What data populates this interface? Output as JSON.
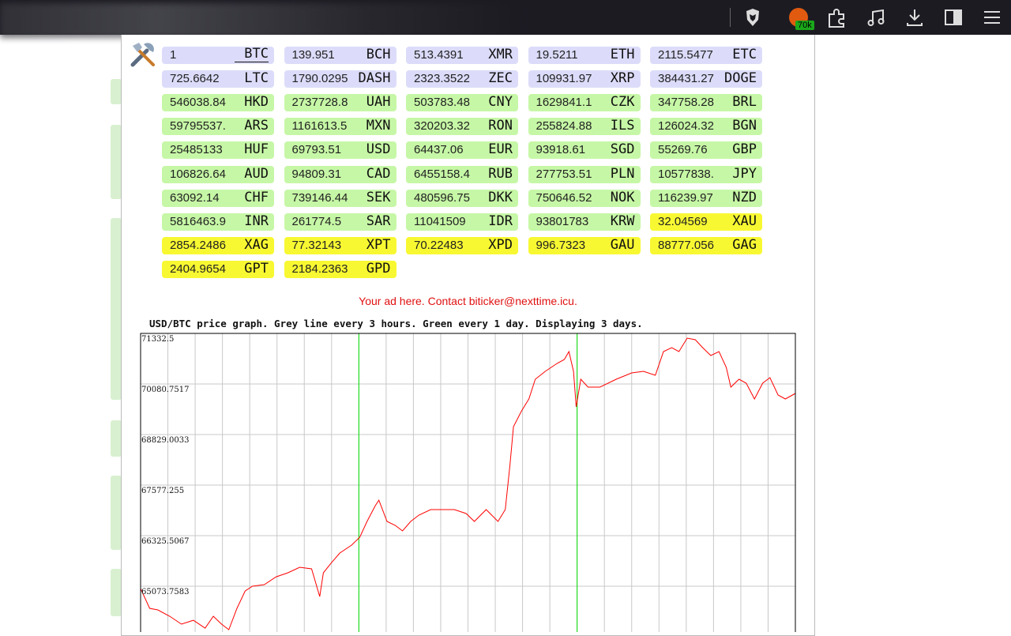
{
  "toolbar": {
    "badge": "70k"
  },
  "tickers": [
    {
      "value": "1",
      "code": "BTC",
      "color": "#dcdcfa"
    },
    {
      "value": "139.951",
      "code": "BCH",
      "color": "#dcdcfa"
    },
    {
      "value": "513.4391",
      "code": "XMR",
      "color": "#dcdcfa"
    },
    {
      "value": "19.5211",
      "code": "ETH",
      "color": "#dcdcfa"
    },
    {
      "value": "2115.5477",
      "code": "ETC",
      "color": "#dcdcfa"
    },
    {
      "value": "725.6642",
      "code": "LTC",
      "color": "#dcdcfa"
    },
    {
      "value": "1790.0295",
      "code": "DASH",
      "color": "#dcdcfa"
    },
    {
      "value": "2323.3522",
      "code": "ZEC",
      "color": "#dcdcfa"
    },
    {
      "value": "109931.97",
      "code": "XRP",
      "color": "#dcdcfa"
    },
    {
      "value": "384431.27",
      "code": "DOGE",
      "color": "#dcdcfa"
    },
    {
      "value": "546038.84",
      "code": "HKD",
      "color": "#c6f7a6"
    },
    {
      "value": "2737728.8",
      "code": "UAH",
      "color": "#c6f7a6"
    },
    {
      "value": "503783.48",
      "code": "CNY",
      "color": "#c6f7a6"
    },
    {
      "value": "1629841.1",
      "code": "CZK",
      "color": "#c6f7a6"
    },
    {
      "value": "347758.28",
      "code": "BRL",
      "color": "#c6f7a6"
    },
    {
      "value": "59795537.",
      "code": "ARS",
      "color": "#c6f7a6"
    },
    {
      "value": "1161613.5",
      "code": "MXN",
      "color": "#c6f7a6"
    },
    {
      "value": "320203.32",
      "code": "RON",
      "color": "#c6f7a6"
    },
    {
      "value": "255824.88",
      "code": "ILS",
      "color": "#c6f7a6"
    },
    {
      "value": "126024.32",
      "code": "BGN",
      "color": "#c6f7a6"
    },
    {
      "value": "25485133",
      "code": "HUF",
      "color": "#c6f7a6"
    },
    {
      "value": "69793.51",
      "code": "USD",
      "color": "#c6f7a6"
    },
    {
      "value": "64437.06",
      "code": "EUR",
      "color": "#c6f7a6"
    },
    {
      "value": "93918.61",
      "code": "SGD",
      "color": "#c6f7a6"
    },
    {
      "value": "55269.76",
      "code": "GBP",
      "color": "#c6f7a6"
    },
    {
      "value": "106826.64",
      "code": "AUD",
      "color": "#c6f7a6"
    },
    {
      "value": "94809.31",
      "code": "CAD",
      "color": "#c6f7a6"
    },
    {
      "value": "6455158.4",
      "code": "RUB",
      "color": "#c6f7a6"
    },
    {
      "value": "277753.51",
      "code": "PLN",
      "color": "#c6f7a6"
    },
    {
      "value": "10577838.",
      "code": "JPY",
      "color": "#c6f7a6"
    },
    {
      "value": "63092.14",
      "code": "CHF",
      "color": "#c6f7a6"
    },
    {
      "value": "739146.44",
      "code": "SEK",
      "color": "#c6f7a6"
    },
    {
      "value": "480596.75",
      "code": "DKK",
      "color": "#c6f7a6"
    },
    {
      "value": "750646.52",
      "code": "NOK",
      "color": "#c6f7a6"
    },
    {
      "value": "116239.97",
      "code": "NZD",
      "color": "#c6f7a6"
    },
    {
      "value": "5816463.9",
      "code": "INR",
      "color": "#c6f7a6"
    },
    {
      "value": "261774.5",
      "code": "SAR",
      "color": "#c6f7a6"
    },
    {
      "value": "11041509",
      "code": "IDR",
      "color": "#c6f7a6"
    },
    {
      "value": "93801783",
      "code": "KRW",
      "color": "#c6f7a6"
    },
    {
      "value": "32.04569",
      "code": "XAU",
      "color": "#f8f832"
    },
    {
      "value": "2854.2486",
      "code": "XAG",
      "color": "#f8f832"
    },
    {
      "value": "77.32143",
      "code": "XPT",
      "color": "#f8f832"
    },
    {
      "value": "70.22483",
      "code": "XPD",
      "color": "#f8f832"
    },
    {
      "value": "996.7323",
      "code": "GAU",
      "color": "#f8f832"
    },
    {
      "value": "88777.056",
      "code": "GAG",
      "color": "#f8f832"
    },
    {
      "value": "2404.9654",
      "code": "GPT",
      "color": "#f8f832"
    },
    {
      "value": "2184.2363",
      "code": "GPD",
      "color": "#f8f832"
    }
  ],
  "ad": "Your ad here. Contact biticker@nexttime.icu.",
  "graph_title": "USD/BTC price graph. Grey line every 3 hours. Green every 1 day. Displaying 3 days.",
  "chart_data": {
    "type": "line",
    "color": "#ff0000",
    "xlim": [
      0,
      72
    ],
    "xticks": [
      0,
      3,
      6,
      9,
      12,
      15,
      18,
      21,
      24,
      27,
      30,
      33,
      36,
      39,
      42,
      45,
      48,
      51,
      54,
      57,
      60,
      63,
      66,
      69,
      72
    ],
    "day_lines": [
      24,
      48
    ],
    "day_line_color": "#00e000",
    "ylim": [
      63940,
      71332.5
    ],
    "yticks": [
      71332.5,
      70080.7517,
      68829.0033,
      67577.255,
      66325.5067,
      65073.7583
    ],
    "x": [
      0.0,
      1.0,
      1.9,
      3.2,
      4.5,
      5.8,
      7.1,
      8.0,
      8.9,
      9.7,
      10.6,
      11.5,
      12.3,
      13.6,
      14.9,
      16.2,
      17.5,
      18.8,
      19.7,
      20.1,
      21.0,
      21.9,
      23.2,
      24.1,
      24.9,
      25.8,
      26.2,
      27.1,
      28.0,
      28.8,
      29.7,
      30.6,
      31.9,
      33.2,
      34.5,
      35.8,
      36.7,
      38.0,
      39.3,
      40.1,
      40.6,
      41.0,
      41.9,
      42.7,
      43.4,
      44.5,
      45.8,
      46.6,
      47.1,
      47.6,
      47.9,
      48.4,
      49.2,
      50.5,
      52.3,
      54.0,
      55.3,
      56.6,
      57.5,
      58.4,
      59.2,
      60.1,
      61.0,
      61.8,
      62.7,
      63.6,
      64.4,
      64.9,
      65.8,
      66.6,
      67.5,
      68.4,
      69.2,
      70.1,
      70.9,
      72.0
    ],
    "values": [
      65015,
      64526,
      64487,
      64331,
      64135,
      64232,
      64037,
      64331,
      64135,
      63998,
      64526,
      64956,
      65074,
      65113,
      65308,
      65406,
      65543,
      65504,
      64819,
      65406,
      65660,
      65895,
      66091,
      66286,
      66677,
      67068,
      67205,
      66677,
      66580,
      66443,
      66677,
      66834,
      66971,
      66971,
      66971,
      66873,
      66677,
      66971,
      66677,
      66971,
      68046,
      69024,
      69416,
      69709,
      70198,
      70394,
      70589,
      70687,
      70883,
      70394,
      69513,
      70198,
      70002,
      70002,
      70198,
      70354,
      70394,
      70296,
      70883,
      70980,
      70883,
      71215,
      71176,
      70980,
      70785,
      70883,
      70491,
      70002,
      70198,
      70100,
      69709,
      70100,
      70237,
      69807,
      69709,
      69846
    ]
  }
}
